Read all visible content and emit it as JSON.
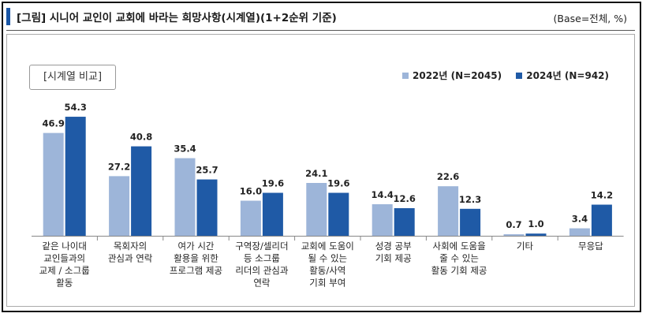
{
  "header": {
    "title": "[그림] 시니어 교인이 교회에 바라는 희망사항(시계열)(1+2순위 기준)",
    "base_note": "(Base=전체, %)"
  },
  "badge": "[시계열 비교]",
  "colors": {
    "series_2022": "#9db5d9",
    "series_2024": "#1f5aa6",
    "accent": "#1a56a6"
  },
  "chart_data": {
    "type": "bar",
    "categories": [
      "같은 나이대 교인들과의 교제 / 소그룹 활동",
      "목회자의 관심과 연락",
      "여가 시간 활용을 위한 프로그램 제공",
      "구역장/셀리더 등 소그룹 리더의 관심과 연락",
      "교회에 도움이 될 수 있는 활동/사역 기회 부여",
      "성경 공부 기회 제공",
      "사회에 도움을 줄 수 있는 활동 기회 제공",
      "기타",
      "무응답"
    ],
    "category_lines": [
      [
        "같은 나이대",
        "교인들과의",
        "교제 / 소그룹",
        "활동"
      ],
      [
        "목회자의",
        "관심과 연락"
      ],
      [
        "여가 시간",
        "활용을 위한",
        "프로그램 제공"
      ],
      [
        "구역장/셀리더",
        "등 소그룹",
        "리더의 관심과",
        "연락"
      ],
      [
        "교회에 도움이",
        "될 수 있는",
        "활동/사역",
        "기회 부여"
      ],
      [
        "성경 공부",
        "기회 제공"
      ],
      [
        "사회에 도움을",
        "줄 수 있는",
        "활동 기회 제공"
      ],
      [
        "기타"
      ],
      [
        "무응답"
      ]
    ],
    "series": [
      {
        "name": "2022년 (N=2045)",
        "values": [
          46.9,
          27.2,
          35.4,
          16.0,
          24.1,
          14.4,
          22.6,
          0.7,
          3.4
        ]
      },
      {
        "name": "2024년 (N=942)",
        "values": [
          54.3,
          40.8,
          25.7,
          19.6,
          19.6,
          12.6,
          12.3,
          1.0,
          14.2
        ]
      }
    ],
    "value_labels": [
      [
        "46.9",
        "27.2",
        "35.4",
        "16.0",
        "24.1",
        "14.4",
        "22.6",
        "0.7",
        "3.4"
      ],
      [
        "54.3",
        "40.8",
        "25.7",
        "19.6",
        "19.6",
        "12.6",
        "12.3",
        "1.0",
        "14.2"
      ]
    ],
    "ylim": [
      0,
      60
    ],
    "legend_position": "top-right",
    "grid": false
  }
}
